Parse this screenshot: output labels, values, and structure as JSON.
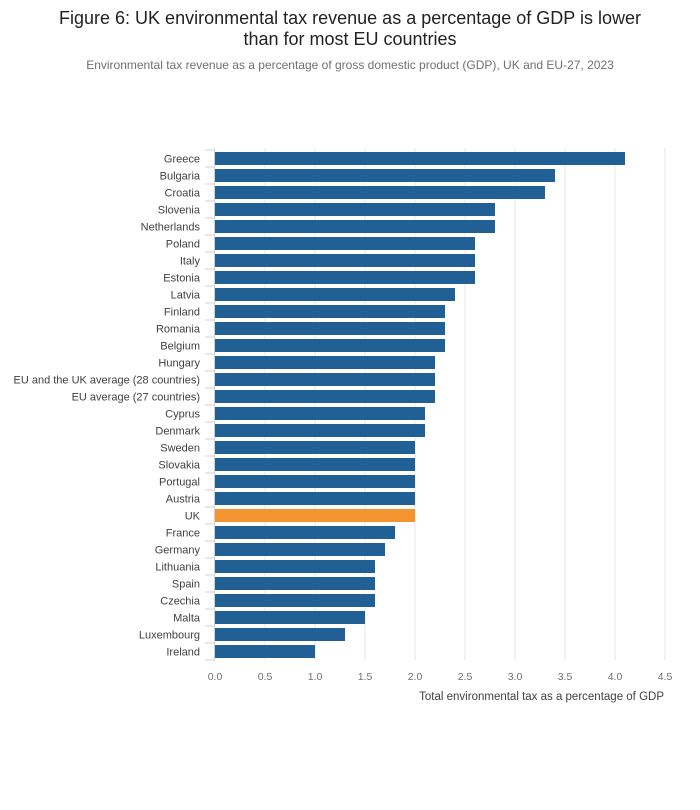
{
  "title_lines": [
    "Figure 6: UK environmental tax revenue as a percentage of GDP is lower",
    "than for most EU countries"
  ],
  "subtitle": "Environmental tax revenue as a percentage of gross domestic product (GDP), UK and EU-27, 2023",
  "colors": {
    "bar": "#206095",
    "highlight": "#f39431",
    "grid": "#e4e4e4"
  },
  "chart_data": {
    "type": "bar",
    "orientation": "horizontal",
    "categories": [
      "Greece",
      "Bulgaria",
      "Croatia",
      "Slovenia",
      "Netherlands",
      "Poland",
      "Italy",
      "Estonia",
      "Latvia",
      "Finland",
      "Romania",
      "Belgium",
      "Hungary",
      "EU and the UK average (28 countries)",
      "EU average (27 countries)",
      "Cyprus",
      "Denmark",
      "Sweden",
      "Slovakia",
      "Portugal",
      "Austria",
      "UK",
      "France",
      "Germany",
      "Lithuania",
      "Spain",
      "Czechia",
      "Malta",
      "Luxembourg",
      "Ireland"
    ],
    "values": [
      4.1,
      3.4,
      3.3,
      2.8,
      2.8,
      2.6,
      2.6,
      2.6,
      2.4,
      2.3,
      2.3,
      2.3,
      2.2,
      2.2,
      2.2,
      2.1,
      2.1,
      2.0,
      2.0,
      2.0,
      2.0,
      2.0,
      1.8,
      1.7,
      1.6,
      1.6,
      1.6,
      1.5,
      1.3,
      1.0
    ],
    "highlight": "UK",
    "xlabel": "Total environmental tax as a percentage of GDP",
    "ylabel": "",
    "xlim": [
      0,
      4.5
    ],
    "xticks": [
      "0.0",
      "0.5",
      "1.0",
      "1.5",
      "2.0",
      "2.5",
      "3.0",
      "3.5",
      "4.0",
      "4.5"
    ],
    "grid": true
  }
}
